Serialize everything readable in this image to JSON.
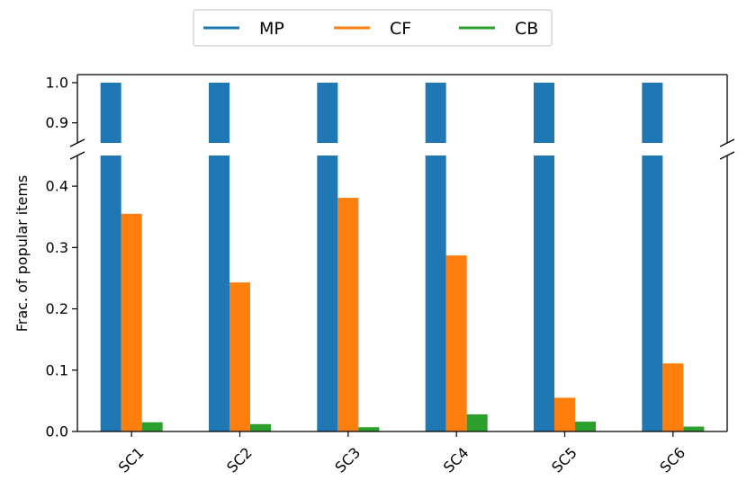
{
  "chart_data": {
    "type": "bar",
    "categories": [
      "SC1",
      "SC2",
      "SC3",
      "SC4",
      "SC5",
      "SC6"
    ],
    "series": [
      {
        "name": "MP",
        "color": "#1f77b4",
        "values": [
          1.0,
          1.0,
          1.0,
          1.0,
          1.0,
          1.0
        ]
      },
      {
        "name": "CF",
        "color": "#ff7f0e",
        "values": [
          0.355,
          0.243,
          0.381,
          0.287,
          0.055,
          0.111
        ]
      },
      {
        "name": "CB",
        "color": "#2ca02c",
        "values": [
          0.015,
          0.012,
          0.007,
          0.028,
          0.016,
          0.008
        ]
      }
    ],
    "ylabel": "Frac. of popular items",
    "xlabel": "",
    "y_axis_broken": true,
    "ylim_lower": [
      0.0,
      0.45
    ],
    "ylim_upper": [
      0.85,
      1.02
    ],
    "yticks_lower": [
      "0.0",
      "0.1",
      "0.2",
      "0.3",
      "0.4"
    ],
    "yticks_upper": [
      "0.9",
      "1.0"
    ],
    "xtick_rotation": "45 degrees",
    "legend_position": "top-center",
    "grid": false
  }
}
